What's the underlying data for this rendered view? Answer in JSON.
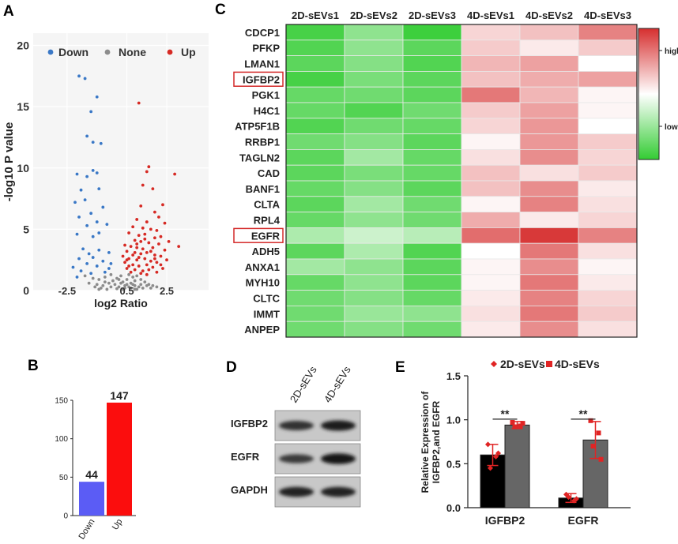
{
  "panels": {
    "a": "A",
    "b": "B",
    "c": "C",
    "d": "D",
    "e": "E"
  },
  "chart_data": [
    {
      "panel": "A",
      "type": "scatter",
      "title": "",
      "xlabel": "log2 Ratio",
      "ylabel": "-log10 P value",
      "xlim": [
        -4.2,
        4.6
      ],
      "ylim": [
        0,
        21
      ],
      "xticks": [
        "-2.5",
        "0.5",
        "2.5"
      ],
      "xtick_values": [
        -2.5,
        0.5,
        2.5
      ],
      "yticks": [
        "0",
        "5",
        "10",
        "15",
        "20"
      ],
      "ytick_values": [
        0,
        5,
        10,
        15,
        20
      ],
      "grid": true,
      "legend": [
        {
          "name": "Down",
          "color": "#3a78c6"
        },
        {
          "name": "None",
          "color": "#8c8c8c"
        },
        {
          "name": "Up",
          "color": "#d62a24"
        }
      ],
      "series": [
        {
          "name": "Down",
          "color": "#3a78c6",
          "points": [
            [
              -1.9,
              17.5
            ],
            [
              -1.6,
              17.3
            ],
            [
              -1.0,
              15.8
            ],
            [
              -1.3,
              14.6
            ],
            [
              -1.5,
              12.6
            ],
            [
              -1.2,
              12.1
            ],
            [
              -0.8,
              12.0
            ],
            [
              -2.0,
              9.5
            ],
            [
              -1.5,
              9.3
            ],
            [
              -1.2,
              9.8
            ],
            [
              -1.0,
              9.6
            ],
            [
              -1.8,
              8.2
            ],
            [
              -0.9,
              8.3
            ],
            [
              -2.1,
              7.2
            ],
            [
              -1.6,
              7.4
            ],
            [
              -1.3,
              6.3
            ],
            [
              -0.7,
              6.8
            ],
            [
              -1.9,
              6.0
            ],
            [
              -1.5,
              5.3
            ],
            [
              -1.0,
              5.6
            ],
            [
              -0.5,
              5.4
            ],
            [
              -2.0,
              4.6
            ],
            [
              -1.2,
              4.4
            ],
            [
              -0.9,
              4.7
            ],
            [
              -1.7,
              3.4
            ],
            [
              -1.4,
              3.0
            ],
            [
              -0.9,
              3.3
            ],
            [
              -0.4,
              3.1
            ],
            [
              -1.9,
              2.6
            ],
            [
              -1.2,
              2.7
            ],
            [
              -0.7,
              2.4
            ],
            [
              -1.5,
              2.2
            ],
            [
              -1.0,
              2.0
            ],
            [
              -0.3,
              2.2
            ],
            [
              -2.2,
              1.9
            ],
            [
              -1.8,
              1.6
            ],
            [
              -0.6,
              1.5
            ],
            [
              -1.3,
              1.4
            ],
            [
              -2.0,
              1.1
            ],
            [
              -0.4,
              1.8
            ]
          ]
        },
        {
          "name": "None",
          "color": "#8c8c8c",
          "points": [
            [
              -1.6,
              1.2
            ],
            [
              -1.2,
              1.0
            ],
            [
              -0.9,
              0.9
            ],
            [
              -0.6,
              1.1
            ],
            [
              -0.3,
              1.3
            ],
            [
              -0.2,
              0.8
            ],
            [
              0.0,
              1.0
            ],
            [
              0.2,
              1.2
            ],
            [
              0.3,
              0.7
            ],
            [
              0.5,
              0.9
            ],
            [
              0.6,
              1.3
            ],
            [
              0.7,
              0.6
            ],
            [
              0.8,
              1.1
            ],
            [
              0.9,
              0.8
            ],
            [
              1.0,
              1.2
            ],
            [
              1.2,
              0.9
            ],
            [
              1.4,
              0.7
            ],
            [
              1.6,
              0.5
            ],
            [
              1.8,
              0.4
            ],
            [
              2.0,
              0.3
            ],
            [
              -1.4,
              0.6
            ],
            [
              -1.0,
              0.5
            ],
            [
              -0.7,
              0.4
            ],
            [
              -0.4,
              0.6
            ],
            [
              -0.1,
              0.5
            ],
            [
              0.1,
              0.3
            ],
            [
              0.4,
              0.4
            ],
            [
              0.6,
              0.3
            ],
            [
              0.9,
              0.4
            ],
            [
              1.1,
              0.3
            ],
            [
              1.3,
              0.2
            ],
            [
              -0.8,
              0.2
            ],
            [
              -0.5,
              0.1
            ],
            [
              0.0,
              0.15
            ],
            [
              0.3,
              0.1
            ],
            [
              0.7,
              0.2
            ],
            [
              1.0,
              0.1
            ],
            [
              -1.1,
              0.3
            ],
            [
              0.2,
              0.6
            ],
            [
              0.5,
              0.5
            ],
            [
              -0.3,
              0.3
            ],
            [
              0.8,
              0.5
            ],
            [
              1.5,
              0.4
            ],
            [
              -0.6,
              0.7
            ],
            [
              0.1,
              0.9
            ],
            [
              1.2,
              0.5
            ],
            [
              1.7,
              0.2
            ],
            [
              -0.9,
              0.1
            ],
            [
              0.4,
              0.2
            ],
            [
              0.9,
              0.1
            ]
          ]
        },
        {
          "name": "Up",
          "color": "#d62a24",
          "points": [
            [
              1.1,
              15.3
            ],
            [
              1.6,
              10.1
            ],
            [
              1.5,
              9.7
            ],
            [
              2.9,
              9.5
            ],
            [
              1.3,
              8.6
            ],
            [
              1.8,
              8.3
            ],
            [
              2.3,
              7.0
            ],
            [
              1.2,
              6.9
            ],
            [
              1.9,
              6.4
            ],
            [
              2.1,
              6.0
            ],
            [
              1.0,
              5.8
            ],
            [
              1.5,
              5.6
            ],
            [
              2.4,
              5.5
            ],
            [
              0.8,
              5.2
            ],
            [
              1.3,
              5.1
            ],
            [
              1.7,
              5.0
            ],
            [
              2.0,
              4.9
            ],
            [
              0.6,
              4.7
            ],
            [
              1.1,
              4.5
            ],
            [
              1.4,
              4.6
            ],
            [
              1.9,
              4.3
            ],
            [
              2.2,
              4.4
            ],
            [
              0.9,
              4.1
            ],
            [
              1.2,
              4.0
            ],
            [
              1.6,
              3.9
            ],
            [
              2.1,
              3.8
            ],
            [
              0.4,
              3.7
            ],
            [
              0.7,
              3.6
            ],
            [
              1.0,
              3.5
            ],
            [
              1.3,
              3.4
            ],
            [
              1.8,
              3.5
            ],
            [
              2.4,
              3.3
            ],
            [
              0.5,
              3.2
            ],
            [
              0.9,
              3.1
            ],
            [
              1.2,
              3.0
            ],
            [
              1.5,
              3.1
            ],
            [
              1.9,
              2.9
            ],
            [
              2.2,
              2.8
            ],
            [
              0.3,
              2.8
            ],
            [
              0.6,
              2.6
            ],
            [
              1.0,
              2.5
            ],
            [
              1.4,
              2.6
            ],
            [
              1.7,
              2.4
            ],
            [
              2.0,
              2.3
            ],
            [
              0.4,
              2.3
            ],
            [
              0.8,
              2.1
            ],
            [
              1.1,
              2.0
            ],
            [
              1.5,
              2.1
            ],
            [
              1.8,
              1.9
            ],
            [
              2.3,
              1.8
            ],
            [
              0.5,
              1.8
            ],
            [
              0.9,
              1.7
            ],
            [
              1.3,
              1.6
            ],
            [
              1.6,
              1.7
            ],
            [
              2.0,
              1.5
            ],
            [
              0.7,
              1.5
            ],
            [
              1.2,
              1.4
            ],
            [
              1.5,
              1.3
            ],
            [
              0.6,
              2.0
            ],
            [
              1.0,
              3.8
            ],
            [
              1.4,
              4.2
            ],
            [
              1.7,
              3.2
            ],
            [
              2.5,
              2.5
            ],
            [
              3.1,
              3.6
            ],
            [
              2.6,
              4.0
            ],
            [
              0.8,
              2.9
            ],
            [
              1.1,
              2.7
            ],
            [
              1.9,
              2.6
            ],
            [
              2.2,
              2.1
            ],
            [
              0.5,
              2.5
            ]
          ]
        }
      ]
    },
    {
      "panel": "B",
      "type": "bar",
      "title": "",
      "categories": [
        "Down",
        "Up"
      ],
      "values": [
        44,
        147
      ],
      "colors": [
        "#5b5cf5",
        "#fb0d0d"
      ],
      "value_labels": [
        "44",
        "147"
      ],
      "yticks": [
        "0",
        "50",
        "100",
        "150"
      ],
      "ytick_values": [
        0,
        50,
        100,
        150
      ],
      "ylim": [
        0,
        150
      ],
      "xlabel": "",
      "ylabel": ""
    },
    {
      "panel": "C",
      "type": "heatmap",
      "title": "",
      "columns": [
        "2D-sEVs1",
        "2D-sEVs2",
        "2D-sEVs3",
        "4D-sEVs1",
        "4D-sEVs2",
        "4D-sEVs3"
      ],
      "rows": [
        "CDCP1",
        "PFKP",
        "LMAN1",
        "IGFBP2",
        "PGK1",
        "H4C1",
        "ATP5F1B",
        "RRBP1",
        "TAGLN2",
        "CAD",
        "BANF1",
        "CLTA",
        "RPL4",
        "EGFR",
        "ADH5",
        "ANXA1",
        "MYH10",
        "CLTC",
        "IMMT",
        "ANPEP"
      ],
      "highlighted_rows": [
        "IGFBP2",
        "EGFR"
      ],
      "values": [
        [
          -0.9,
          -0.55,
          -0.95,
          0.2,
          0.3,
          0.6
        ],
        [
          -0.85,
          -0.55,
          -0.8,
          0.25,
          0.1,
          0.25
        ],
        [
          -0.8,
          -0.6,
          -0.85,
          0.35,
          0.45,
          0.0
        ],
        [
          -0.9,
          -0.65,
          -0.8,
          0.3,
          0.4,
          0.45
        ],
        [
          -0.75,
          -0.7,
          -0.8,
          0.65,
          0.35,
          0.05
        ],
        [
          -0.75,
          -0.85,
          -0.7,
          0.25,
          0.45,
          0.05
        ],
        [
          -0.85,
          -0.7,
          -0.75,
          0.2,
          0.5,
          0.0
        ],
        [
          -0.7,
          -0.6,
          -0.8,
          0.05,
          0.5,
          0.25
        ],
        [
          -0.8,
          -0.45,
          -0.75,
          0.15,
          0.55,
          0.2
        ],
        [
          -0.8,
          -0.65,
          -0.75,
          0.3,
          0.15,
          0.25
        ],
        [
          -0.75,
          -0.6,
          -0.8,
          0.3,
          0.55,
          0.1
        ],
        [
          -0.8,
          -0.45,
          -0.7,
          0.05,
          0.6,
          0.15
        ],
        [
          -0.75,
          -0.55,
          -0.7,
          0.4,
          0.1,
          0.2
        ],
        [
          -0.4,
          -0.25,
          -0.35,
          0.7,
          0.95,
          0.6
        ],
        [
          -0.8,
          -0.4,
          -0.85,
          0.0,
          0.65,
          0.15
        ],
        [
          -0.45,
          -0.55,
          -0.8,
          0.05,
          0.55,
          0.05
        ],
        [
          -0.75,
          -0.55,
          -0.8,
          0.05,
          0.65,
          0.1
        ],
        [
          -0.7,
          -0.6,
          -0.75,
          0.1,
          0.6,
          0.2
        ],
        [
          -0.7,
          -0.5,
          -0.55,
          0.15,
          0.65,
          0.25
        ],
        [
          -0.7,
          -0.6,
          -0.7,
          0.1,
          0.55,
          0.15
        ]
      ],
      "colorbar": {
        "high_label": "high",
        "low_label": "low",
        "high_color": "#d62f2f",
        "mid_color": "#ffffff",
        "low_color": "#33cc33"
      }
    },
    {
      "panel": "E",
      "type": "bar",
      "title": "",
      "categories": [
        "IGFBP2",
        "EGFR"
      ],
      "ylabel": "Relative Expression of IGFBP2,and EGFR",
      "ylabel_lines": [
        "Relative Expression of",
        "IGFBP2,and EGFR"
      ],
      "ylim": [
        0,
        1.5
      ],
      "yticks": [
        "0.0",
        "0.5",
        "1.0",
        "1.5"
      ],
      "ytick_values": [
        0,
        0.5,
        1.0,
        1.5
      ],
      "legend": [
        {
          "name": "2D-sEVs",
          "marker": "diamond",
          "color": "#e02424"
        },
        {
          "name": "4D-sEVs",
          "marker": "square",
          "color": "#e02424"
        }
      ],
      "series": [
        {
          "name": "2D-sEVs",
          "fill": "#000000",
          "values": [
            0.6,
            0.11
          ],
          "errors": [
            0.12,
            0.05
          ],
          "points": [
            [
              0.72,
              0.58,
              0.45,
              0.62
            ],
            [
              0.15,
              0.08,
              0.12,
              0.1
            ]
          ]
        },
        {
          "name": "4D-sEVs",
          "fill": "#666666",
          "values": [
            0.94,
            0.77
          ],
          "errors": [
            0.04,
            0.21
          ],
          "points": [
            [
              0.97,
              0.93,
              0.92,
              0.96
            ],
            [
              0.99,
              0.85,
              0.7,
              0.55
            ]
          ]
        }
      ],
      "significance": [
        "**",
        "**"
      ]
    }
  ],
  "western_blot": {
    "panel": "D",
    "lanes": [
      "2D-sEVs",
      "4D-sEVs"
    ],
    "rows": [
      {
        "label": "IGFBP2",
        "intensity": [
          0.65,
          0.85
        ]
      },
      {
        "label": "EGFR",
        "intensity": [
          0.55,
          0.9
        ]
      },
      {
        "label": "GAPDH",
        "intensity": [
          0.8,
          0.8
        ]
      }
    ]
  }
}
